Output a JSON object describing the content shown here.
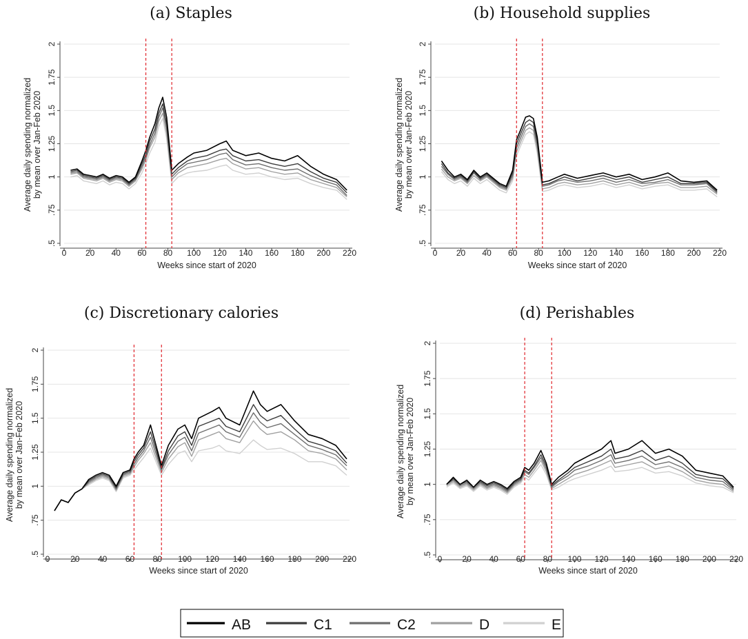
{
  "legend": [
    {
      "name": "AB",
      "color": "#000000"
    },
    {
      "name": "C1",
      "color": "#3c3c3c"
    },
    {
      "name": "C2",
      "color": "#6e6e6e"
    },
    {
      "name": "D",
      "color": "#a0a0a0"
    },
    {
      "name": "E",
      "color": "#d0d0d0"
    }
  ],
  "colors": {
    "vline": "#e0242a",
    "grid": "#e4e4e4",
    "axis": "#444444"
  },
  "chart_data": [
    {
      "type": "line",
      "title": "(a) Staples",
      "xlabel": "Weeks since start of 2020",
      "ylabel": [
        "Average daily spending normalized",
        "by mean over Jan-Feb 2020"
      ],
      "xlim": [
        0,
        220
      ],
      "ylim": [
        0.5,
        2
      ],
      "xticks": [
        0,
        20,
        40,
        60,
        80,
        100,
        120,
        140,
        160,
        180,
        200,
        220
      ],
      "yticks": [
        0.5,
        0.75,
        1,
        1.25,
        1.5,
        1.75,
        2
      ],
      "ytick_labels": [
        ".5",
        ".75",
        "1",
        "1.25",
        "1.5",
        "1.75",
        "2"
      ],
      "grid": true,
      "vlines": [
        63,
        83
      ],
      "x": [
        5,
        10,
        15,
        20,
        25,
        30,
        35,
        40,
        45,
        50,
        55,
        60,
        63,
        66,
        70,
        73,
        76,
        79,
        83,
        88,
        95,
        100,
        110,
        120,
        125,
        130,
        140,
        150,
        160,
        170,
        180,
        190,
        200,
        210,
        218
      ],
      "series": [
        {
          "name": "AB",
          "values": [
            1.05,
            1.06,
            1.02,
            1.01,
            1.0,
            1.02,
            0.99,
            1.01,
            1.0,
            0.96,
            1.0,
            1.12,
            1.2,
            1.3,
            1.4,
            1.52,
            1.6,
            1.45,
            1.05,
            1.1,
            1.15,
            1.18,
            1.2,
            1.25,
            1.27,
            1.2,
            1.16,
            1.18,
            1.14,
            1.12,
            1.16,
            1.08,
            1.02,
            0.98,
            0.9
          ]
        },
        {
          "name": "C1",
          "values": [
            1.04,
            1.05,
            1.01,
            1.0,
            0.99,
            1.01,
            0.98,
            1.0,
            0.99,
            0.95,
            0.99,
            1.1,
            1.17,
            1.27,
            1.36,
            1.48,
            1.55,
            1.4,
            1.02,
            1.07,
            1.12,
            1.14,
            1.16,
            1.2,
            1.21,
            1.16,
            1.12,
            1.13,
            1.1,
            1.08,
            1.1,
            1.04,
            0.99,
            0.96,
            0.88
          ]
        },
        {
          "name": "C2",
          "values": [
            1.03,
            1.04,
            1.0,
            0.99,
            0.98,
            1.0,
            0.97,
            0.99,
            0.98,
            0.94,
            0.98,
            1.08,
            1.15,
            1.24,
            1.33,
            1.45,
            1.52,
            1.37,
            1.0,
            1.05,
            1.1,
            1.11,
            1.13,
            1.17,
            1.18,
            1.13,
            1.09,
            1.1,
            1.07,
            1.05,
            1.06,
            1.01,
            0.97,
            0.94,
            0.86
          ]
        },
        {
          "name": "D",
          "values": [
            1.02,
            1.03,
            0.99,
            0.98,
            0.97,
            0.99,
            0.96,
            0.98,
            0.97,
            0.93,
            0.97,
            1.06,
            1.13,
            1.22,
            1.3,
            1.42,
            1.48,
            1.33,
            0.98,
            1.03,
            1.07,
            1.08,
            1.1,
            1.13,
            1.14,
            1.1,
            1.06,
            1.07,
            1.04,
            1.02,
            1.03,
            0.98,
            0.95,
            0.92,
            0.85
          ]
        },
        {
          "name": "E",
          "values": [
            1.0,
            1.01,
            0.97,
            0.96,
            0.95,
            0.97,
            0.94,
            0.96,
            0.95,
            0.91,
            0.95,
            1.03,
            1.1,
            1.18,
            1.26,
            1.38,
            1.44,
            1.29,
            0.95,
            1.0,
            1.03,
            1.04,
            1.05,
            1.08,
            1.09,
            1.05,
            1.02,
            1.03,
            1.0,
            0.98,
            0.99,
            0.95,
            0.92,
            0.9,
            0.83
          ]
        }
      ]
    },
    {
      "type": "line",
      "title": "(b) Household supplies",
      "xlabel": "Weeks since start of 2020",
      "ylabel": [
        "Average daily spending normalized",
        "by mean over Jan-Feb 2020"
      ],
      "xlim": [
        0,
        220
      ],
      "ylim": [
        0.5,
        2
      ],
      "xticks": [
        0,
        20,
        40,
        60,
        80,
        100,
        120,
        140,
        160,
        180,
        200,
        220
      ],
      "yticks": [
        0.5,
        0.75,
        1,
        1.25,
        1.5,
        1.75,
        2
      ],
      "ytick_labels": [
        ".5",
        ".75",
        "1",
        "1.25",
        "1.5",
        "1.75",
        "2"
      ],
      "grid": true,
      "vlines": [
        63,
        83
      ],
      "x": [
        5,
        10,
        15,
        20,
        25,
        30,
        35,
        40,
        45,
        50,
        55,
        60,
        63,
        66,
        70,
        73,
        76,
        79,
        83,
        88,
        95,
        100,
        110,
        120,
        130,
        140,
        150,
        160,
        170,
        180,
        190,
        200,
        210,
        218
      ],
      "series": [
        {
          "name": "AB",
          "values": [
            1.12,
            1.05,
            1.0,
            1.02,
            0.98,
            1.05,
            1.0,
            1.03,
            0.99,
            0.95,
            0.93,
            1.05,
            1.28,
            1.35,
            1.45,
            1.46,
            1.44,
            1.3,
            0.96,
            0.97,
            1.0,
            1.02,
            0.99,
            1.01,
            1.03,
            1.0,
            1.02,
            0.98,
            1.0,
            1.03,
            0.97,
            0.96,
            0.97,
            0.9
          ]
        },
        {
          "name": "C1",
          "values": [
            1.1,
            1.03,
            0.99,
            1.01,
            0.97,
            1.04,
            0.99,
            1.02,
            0.98,
            0.94,
            0.92,
            1.03,
            1.25,
            1.32,
            1.41,
            1.43,
            1.41,
            1.27,
            0.94,
            0.95,
            0.98,
            1.0,
            0.97,
            0.99,
            1.01,
            0.98,
            1.0,
            0.96,
            0.98,
            1.0,
            0.95,
            0.95,
            0.96,
            0.89
          ]
        },
        {
          "name": "C2",
          "values": [
            1.08,
            1.02,
            0.98,
            1.0,
            0.96,
            1.03,
            0.98,
            1.01,
            0.97,
            0.93,
            0.91,
            1.01,
            1.22,
            1.29,
            1.38,
            1.4,
            1.38,
            1.24,
            0.93,
            0.94,
            0.97,
            0.98,
            0.96,
            0.97,
            0.99,
            0.96,
            0.98,
            0.95,
            0.96,
            0.98,
            0.94,
            0.94,
            0.95,
            0.88
          ]
        },
        {
          "name": "D",
          "values": [
            1.06,
            1.0,
            0.97,
            0.99,
            0.95,
            1.01,
            0.97,
            1.0,
            0.96,
            0.92,
            0.9,
            0.99,
            1.19,
            1.26,
            1.35,
            1.37,
            1.35,
            1.21,
            0.91,
            0.92,
            0.95,
            0.96,
            0.94,
            0.95,
            0.97,
            0.94,
            0.96,
            0.93,
            0.95,
            0.96,
            0.92,
            0.92,
            0.93,
            0.87
          ]
        },
        {
          "name": "E",
          "values": [
            1.04,
            0.98,
            0.95,
            0.97,
            0.93,
            0.99,
            0.95,
            0.98,
            0.94,
            0.9,
            0.88,
            0.97,
            1.16,
            1.23,
            1.32,
            1.34,
            1.32,
            1.18,
            0.89,
            0.9,
            0.93,
            0.94,
            0.92,
            0.93,
            0.95,
            0.92,
            0.94,
            0.91,
            0.93,
            0.94,
            0.9,
            0.9,
            0.91,
            0.85
          ]
        }
      ]
    },
    {
      "type": "line",
      "title": "(c) Discretionary calories",
      "xlabel": "Weeks since start of 2020",
      "ylabel": [
        "Average daily spending normalized",
        "by mean over Jan-Feb 2020"
      ],
      "xlim": [
        0,
        220
      ],
      "ylim": [
        0.5,
        2
      ],
      "xticks": [
        0,
        20,
        40,
        60,
        80,
        100,
        120,
        140,
        160,
        180,
        200,
        220
      ],
      "yticks": [
        0.5,
        0.75,
        1,
        1.25,
        1.5,
        1.75,
        2
      ],
      "ytick_labels": [
        ".5",
        ".75",
        "1",
        "1.25",
        "1.5",
        "1.75",
        "2"
      ],
      "grid": true,
      "vlines": [
        63,
        83
      ],
      "x": [
        5,
        10,
        15,
        20,
        25,
        30,
        35,
        40,
        45,
        50,
        55,
        60,
        63,
        66,
        70,
        75,
        79,
        83,
        88,
        95,
        100,
        105,
        110,
        120,
        125,
        130,
        140,
        150,
        155,
        160,
        170,
        180,
        190,
        200,
        210,
        218
      ],
      "series": [
        {
          "name": "AB",
          "values": [
            0.82,
            0.9,
            0.88,
            0.95,
            0.98,
            1.05,
            1.08,
            1.1,
            1.08,
            1.0,
            1.1,
            1.12,
            1.2,
            1.25,
            1.3,
            1.45,
            1.3,
            1.15,
            1.3,
            1.42,
            1.45,
            1.35,
            1.5,
            1.55,
            1.58,
            1.5,
            1.45,
            1.7,
            1.6,
            1.55,
            1.6,
            1.48,
            1.38,
            1.35,
            1.3,
            1.2
          ]
        },
        {
          "name": "C1",
          "values": [
            0.82,
            0.9,
            0.88,
            0.95,
            0.98,
            1.04,
            1.07,
            1.09,
            1.07,
            0.99,
            1.09,
            1.11,
            1.18,
            1.23,
            1.28,
            1.4,
            1.27,
            1.13,
            1.26,
            1.37,
            1.4,
            1.3,
            1.44,
            1.48,
            1.5,
            1.44,
            1.4,
            1.6,
            1.52,
            1.48,
            1.52,
            1.42,
            1.33,
            1.3,
            1.26,
            1.17
          ]
        },
        {
          "name": "C2",
          "values": [
            0.82,
            0.9,
            0.88,
            0.95,
            0.98,
            1.03,
            1.06,
            1.08,
            1.06,
            0.98,
            1.08,
            1.1,
            1.16,
            1.21,
            1.26,
            1.36,
            1.24,
            1.12,
            1.23,
            1.33,
            1.36,
            1.26,
            1.39,
            1.43,
            1.45,
            1.4,
            1.36,
            1.54,
            1.47,
            1.43,
            1.46,
            1.38,
            1.3,
            1.27,
            1.23,
            1.15
          ]
        },
        {
          "name": "D",
          "values": [
            0.82,
            0.9,
            0.88,
            0.95,
            0.98,
            1.02,
            1.05,
            1.07,
            1.05,
            0.97,
            1.07,
            1.09,
            1.14,
            1.19,
            1.24,
            1.32,
            1.21,
            1.1,
            1.2,
            1.29,
            1.32,
            1.22,
            1.34,
            1.38,
            1.4,
            1.35,
            1.32,
            1.48,
            1.42,
            1.38,
            1.4,
            1.34,
            1.26,
            1.24,
            1.2,
            1.12
          ]
        },
        {
          "name": "E",
          "values": [
            0.82,
            0.9,
            0.88,
            0.95,
            0.98,
            1.01,
            1.04,
            1.06,
            1.04,
            0.96,
            1.06,
            1.08,
            1.12,
            1.16,
            1.21,
            1.28,
            1.18,
            1.08,
            1.16,
            1.24,
            1.26,
            1.18,
            1.26,
            1.28,
            1.3,
            1.26,
            1.24,
            1.34,
            1.3,
            1.27,
            1.28,
            1.24,
            1.18,
            1.18,
            1.15,
            1.08
          ]
        }
      ]
    },
    {
      "type": "line",
      "title": "(d) Perishables",
      "xlabel": "Weeks since start of 2020",
      "ylabel": [
        "Average daily spending normalized",
        "by mean over Jan-Feb 2020"
      ],
      "xlim": [
        0,
        220
      ],
      "ylim": [
        0.5,
        2
      ],
      "xticks": [
        0,
        20,
        40,
        60,
        80,
        100,
        120,
        140,
        160,
        180,
        200,
        220
      ],
      "yticks": [
        0.5,
        0.75,
        1,
        1.25,
        1.5,
        1.75,
        2
      ],
      "ytick_labels": [
        ".5",
        ".75",
        "1",
        "1.25",
        "1.5",
        "1.75",
        "2"
      ],
      "grid": true,
      "vlines": [
        63,
        83
      ],
      "x": [
        5,
        10,
        15,
        20,
        25,
        30,
        35,
        40,
        45,
        50,
        55,
        60,
        63,
        66,
        70,
        75,
        79,
        83,
        88,
        95,
        100,
        110,
        120,
        127,
        130,
        140,
        150,
        160,
        170,
        180,
        190,
        200,
        210,
        218
      ],
      "series": [
        {
          "name": "AB",
          "values": [
            1.0,
            1.05,
            1.0,
            1.03,
            0.98,
            1.03,
            1.0,
            1.02,
            1.0,
            0.97,
            1.02,
            1.05,
            1.12,
            1.1,
            1.15,
            1.24,
            1.15,
            1.0,
            1.05,
            1.1,
            1.15,
            1.2,
            1.25,
            1.31,
            1.22,
            1.25,
            1.31,
            1.22,
            1.25,
            1.2,
            1.1,
            1.08,
            1.06,
            0.98
          ]
        },
        {
          "name": "C1",
          "values": [
            1.0,
            1.04,
            1.0,
            1.02,
            0.98,
            1.02,
            0.99,
            1.01,
            0.99,
            0.96,
            1.01,
            1.04,
            1.1,
            1.08,
            1.13,
            1.21,
            1.13,
            0.99,
            1.03,
            1.08,
            1.12,
            1.16,
            1.2,
            1.25,
            1.18,
            1.2,
            1.24,
            1.17,
            1.2,
            1.15,
            1.07,
            1.05,
            1.04,
            0.97
          ]
        },
        {
          "name": "C2",
          "values": [
            1.0,
            1.03,
            0.99,
            1.01,
            0.97,
            1.01,
            0.98,
            1.0,
            0.98,
            0.95,
            1.0,
            1.03,
            1.09,
            1.07,
            1.12,
            1.19,
            1.11,
            0.98,
            1.02,
            1.06,
            1.1,
            1.13,
            1.17,
            1.21,
            1.15,
            1.17,
            1.2,
            1.14,
            1.16,
            1.12,
            1.05,
            1.03,
            1.02,
            0.96
          ]
        },
        {
          "name": "D",
          "values": [
            0.99,
            1.02,
            0.98,
            1.0,
            0.96,
            1.0,
            0.97,
            0.99,
            0.97,
            0.94,
            0.99,
            1.02,
            1.07,
            1.05,
            1.1,
            1.17,
            1.09,
            0.97,
            1.0,
            1.04,
            1.07,
            1.1,
            1.14,
            1.17,
            1.12,
            1.14,
            1.16,
            1.11,
            1.13,
            1.09,
            1.03,
            1.01,
            1.0,
            0.95
          ]
        },
        {
          "name": "E",
          "values": [
            0.98,
            1.01,
            0.97,
            0.99,
            0.95,
            0.99,
            0.96,
            0.98,
            0.96,
            0.93,
            0.98,
            1.01,
            1.05,
            1.03,
            1.08,
            1.14,
            1.07,
            0.96,
            0.98,
            1.02,
            1.04,
            1.07,
            1.1,
            1.13,
            1.09,
            1.1,
            1.12,
            1.08,
            1.09,
            1.06,
            1.01,
            0.99,
            0.98,
            0.94
          ]
        }
      ]
    }
  ]
}
